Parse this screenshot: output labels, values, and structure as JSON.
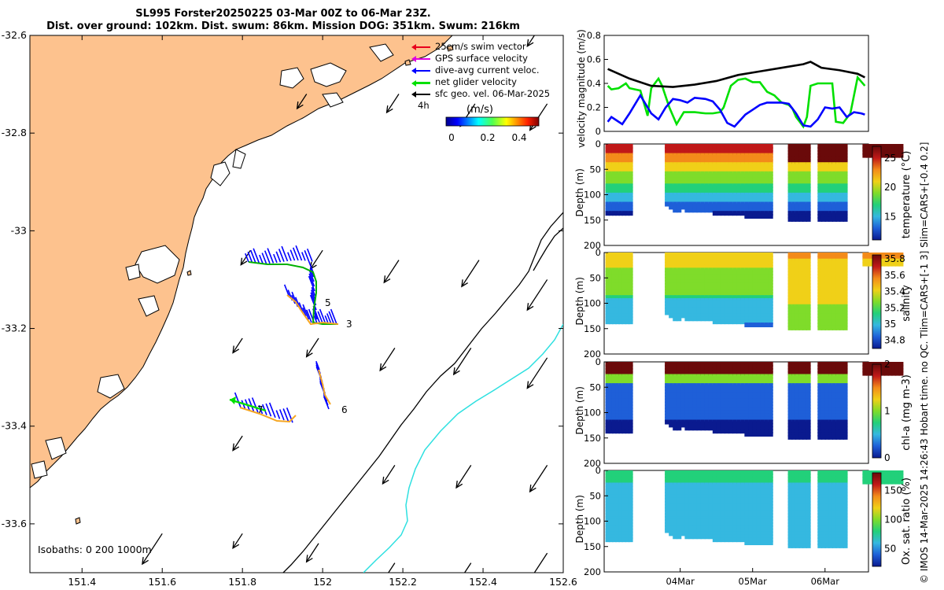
{
  "title": {
    "line1": "SL995 Forster20250225 03-Mar 00Z to 06-Mar 23Z.",
    "line2": "Dist. over ground: 102km. Dist. swum: 86km. Mission DOG: 351km. Swum: 216km"
  },
  "legend": {
    "items": [
      {
        "label": "25cm/s swim vector",
        "color": "#e8001c"
      },
      {
        "label": "GPS surface velocity",
        "color": "#e000e0"
      },
      {
        "label": "dive-avg current veloc.",
        "color": "#0000ff"
      },
      {
        "label": "net glider velocity",
        "color": "#00e000"
      },
      {
        "label": "sfc geo. vel. 06-Mar-2025",
        "color": "#000000"
      }
    ],
    "timestep_label": "4h",
    "colorbar_title": "(m/s)",
    "colorbar_ticks": [
      "0",
      "0.2",
      "0.4"
    ]
  },
  "isobaths_label": "Isobaths: 0   200  1000m",
  "credit": "© IMOS 14-Mar-2025 14:26:43 Hobart time. no QC. Tlim=CARS+[-1 3] Slim=CARS+[-0.4 0.2]",
  "colors": {
    "land": "#fdc28e",
    "coast": "#000000",
    "isobath_200": "#000000",
    "isobath_1000": "#2ee0e0"
  },
  "chart_data": [
    {
      "type": "map",
      "xaxis": {
        "label": "",
        "ticks": [
          "151.4",
          "151.6",
          "151.8",
          "152",
          "152.2",
          "152.4",
          "152.6"
        ],
        "range": [
          151.27,
          152.6
        ]
      },
      "yaxis": {
        "label": "",
        "ticks": [
          "-32.6",
          "-32.8",
          "-33",
          "-33.2",
          "-33.4",
          "-33.6"
        ],
        "range": [
          -33.7,
          -32.6
        ]
      },
      "segment_labels": [
        "3",
        "5",
        "6",
        "7"
      ],
      "geo_arrows_lonlat": [
        [
          151.82,
          -33.04
        ],
        [
          152.0,
          -33.04
        ],
        [
          152.19,
          -33.06
        ],
        [
          152.39,
          -33.06
        ],
        [
          152.56,
          -33.1
        ],
        [
          151.8,
          -33.22
        ],
        [
          151.99,
          -33.22
        ],
        [
          152.18,
          -33.24
        ],
        [
          152.37,
          -33.24
        ],
        [
          152.56,
          -33.26
        ],
        [
          151.8,
          -33.42
        ],
        [
          152.18,
          -33.48
        ],
        [
          152.37,
          -33.48
        ],
        [
          152.56,
          -33.48
        ],
        [
          151.6,
          -33.62
        ],
        [
          151.8,
          -33.62
        ],
        [
          151.99,
          -33.64
        ],
        [
          152.18,
          -33.68
        ],
        [
          152.37,
          -33.68
        ],
        [
          152.56,
          -33.66
        ],
        [
          151.96,
          -32.72
        ],
        [
          152.19,
          -32.72
        ],
        [
          152.38,
          -32.74
        ],
        [
          152.56,
          -32.74
        ],
        [
          152.56,
          -32.56
        ]
      ]
    },
    {
      "type": "line",
      "ylabel": "velocity magnitude (m/s)",
      "ylim": [
        0,
        0.8
      ],
      "yticks": [
        "0",
        "0.2",
        "0.4",
        "0.6",
        "0.8"
      ],
      "x_days": [
        0,
        0.4,
        0.9,
        1.3,
        1.8,
        2.2,
        2.6,
        2.85,
        3.0,
        3.3,
        3.55
      ],
      "series": [
        {
          "name": "net glider velocity",
          "color": "#00e000",
          "x": [
            0,
            0.05,
            0.15,
            0.25,
            0.3,
            0.45,
            0.55,
            0.6,
            0.7,
            0.75,
            0.85,
            0.95,
            1.05,
            1.2,
            1.35,
            1.45,
            1.55,
            1.6,
            1.7,
            1.8,
            1.9,
            2.0,
            2.1,
            2.2,
            2.3,
            2.4,
            2.5,
            2.55,
            2.6,
            2.7,
            2.75,
            2.8,
            2.9,
            3.0,
            3.1,
            3.15,
            3.25,
            3.35,
            3.45,
            3.55
          ],
          "values": [
            0.38,
            0.35,
            0.36,
            0.4,
            0.36,
            0.34,
            0.13,
            0.36,
            0.44,
            0.38,
            0.2,
            0.06,
            0.16,
            0.16,
            0.15,
            0.15,
            0.16,
            0.2,
            0.38,
            0.43,
            0.44,
            0.41,
            0.41,
            0.33,
            0.3,
            0.24,
            0.22,
            0.19,
            0.12,
            0.04,
            0.12,
            0.38,
            0.4,
            0.4,
            0.4,
            0.08,
            0.07,
            0.15,
            0.45,
            0.38
          ]
        },
        {
          "name": "dive-avg current veloc.",
          "color": "#0000ff",
          "x": [
            0,
            0.05,
            0.1,
            0.2,
            0.3,
            0.45,
            0.6,
            0.7,
            0.8,
            0.9,
            1.0,
            1.1,
            1.2,
            1.35,
            1.45,
            1.55,
            1.65,
            1.75,
            1.9,
            2.0,
            2.1,
            2.2,
            2.4,
            2.5,
            2.6,
            2.7,
            2.8,
            2.9,
            3.0,
            3.1,
            3.2,
            3.3,
            3.4,
            3.5,
            3.55
          ],
          "values": [
            0.08,
            0.12,
            0.1,
            0.06,
            0.15,
            0.3,
            0.15,
            0.1,
            0.2,
            0.27,
            0.26,
            0.24,
            0.28,
            0.27,
            0.25,
            0.18,
            0.07,
            0.04,
            0.14,
            0.18,
            0.22,
            0.24,
            0.24,
            0.23,
            0.15,
            0.05,
            0.04,
            0.1,
            0.2,
            0.19,
            0.2,
            0.12,
            0.16,
            0.15,
            0.14
          ]
        },
        {
          "name": "sfc geo. vel.",
          "color": "#000000",
          "x": [
            0,
            0.3,
            0.6,
            0.9,
            1.2,
            1.5,
            1.8,
            2.1,
            2.4,
            2.7,
            2.8,
            2.95,
            3.2,
            3.45,
            3.55
          ],
          "values": [
            0.52,
            0.44,
            0.38,
            0.37,
            0.39,
            0.42,
            0.47,
            0.5,
            0.53,
            0.56,
            0.58,
            0.53,
            0.51,
            0.48,
            0.45
          ]
        }
      ]
    },
    {
      "type": "heatmap",
      "ylabel": "Depth (m)",
      "cbar_label": "temperature (°C)",
      "clim": [
        11,
        27
      ],
      "cbar_ticks": [
        "15",
        "20",
        "25"
      ],
      "ylim": [
        0,
        200
      ],
      "yticks": [
        "0",
        "50",
        "100",
        "150",
        "200"
      ]
    },
    {
      "type": "heatmap",
      "ylabel": "Depth (m)",
      "cbar_label": "salinity",
      "clim": [
        34.7,
        35.85
      ],
      "cbar_ticks": [
        "34.8",
        "35",
        "35.2",
        "35.4",
        "35.6",
        "35.8"
      ],
      "ylim": [
        0,
        200
      ],
      "yticks": [
        "0",
        "50",
        "100",
        "150",
        "200"
      ]
    },
    {
      "type": "heatmap",
      "ylabel": "Depth (m)",
      "cbar_label": "chl-a (mg m-3)",
      "clim": [
        0,
        2
      ],
      "cbar_ticks": [
        "0",
        "1",
        "2"
      ],
      "ylim": [
        0,
        200
      ],
      "yticks": [
        "0",
        "50",
        "100",
        "150",
        "200"
      ]
    },
    {
      "type": "heatmap",
      "ylabel": "Depth (m)",
      "cbar_label": "Ox. sat. ratio (%)",
      "clim": [
        20,
        180
      ],
      "cbar_ticks": [
        "50",
        "100",
        "150"
      ],
      "ylim": [
        0,
        200
      ],
      "yticks": [
        "0",
        "50",
        "100",
        "150",
        "200"
      ],
      "xticks": [
        "04Mar",
        "05Mar",
        "06Mar"
      ]
    }
  ]
}
